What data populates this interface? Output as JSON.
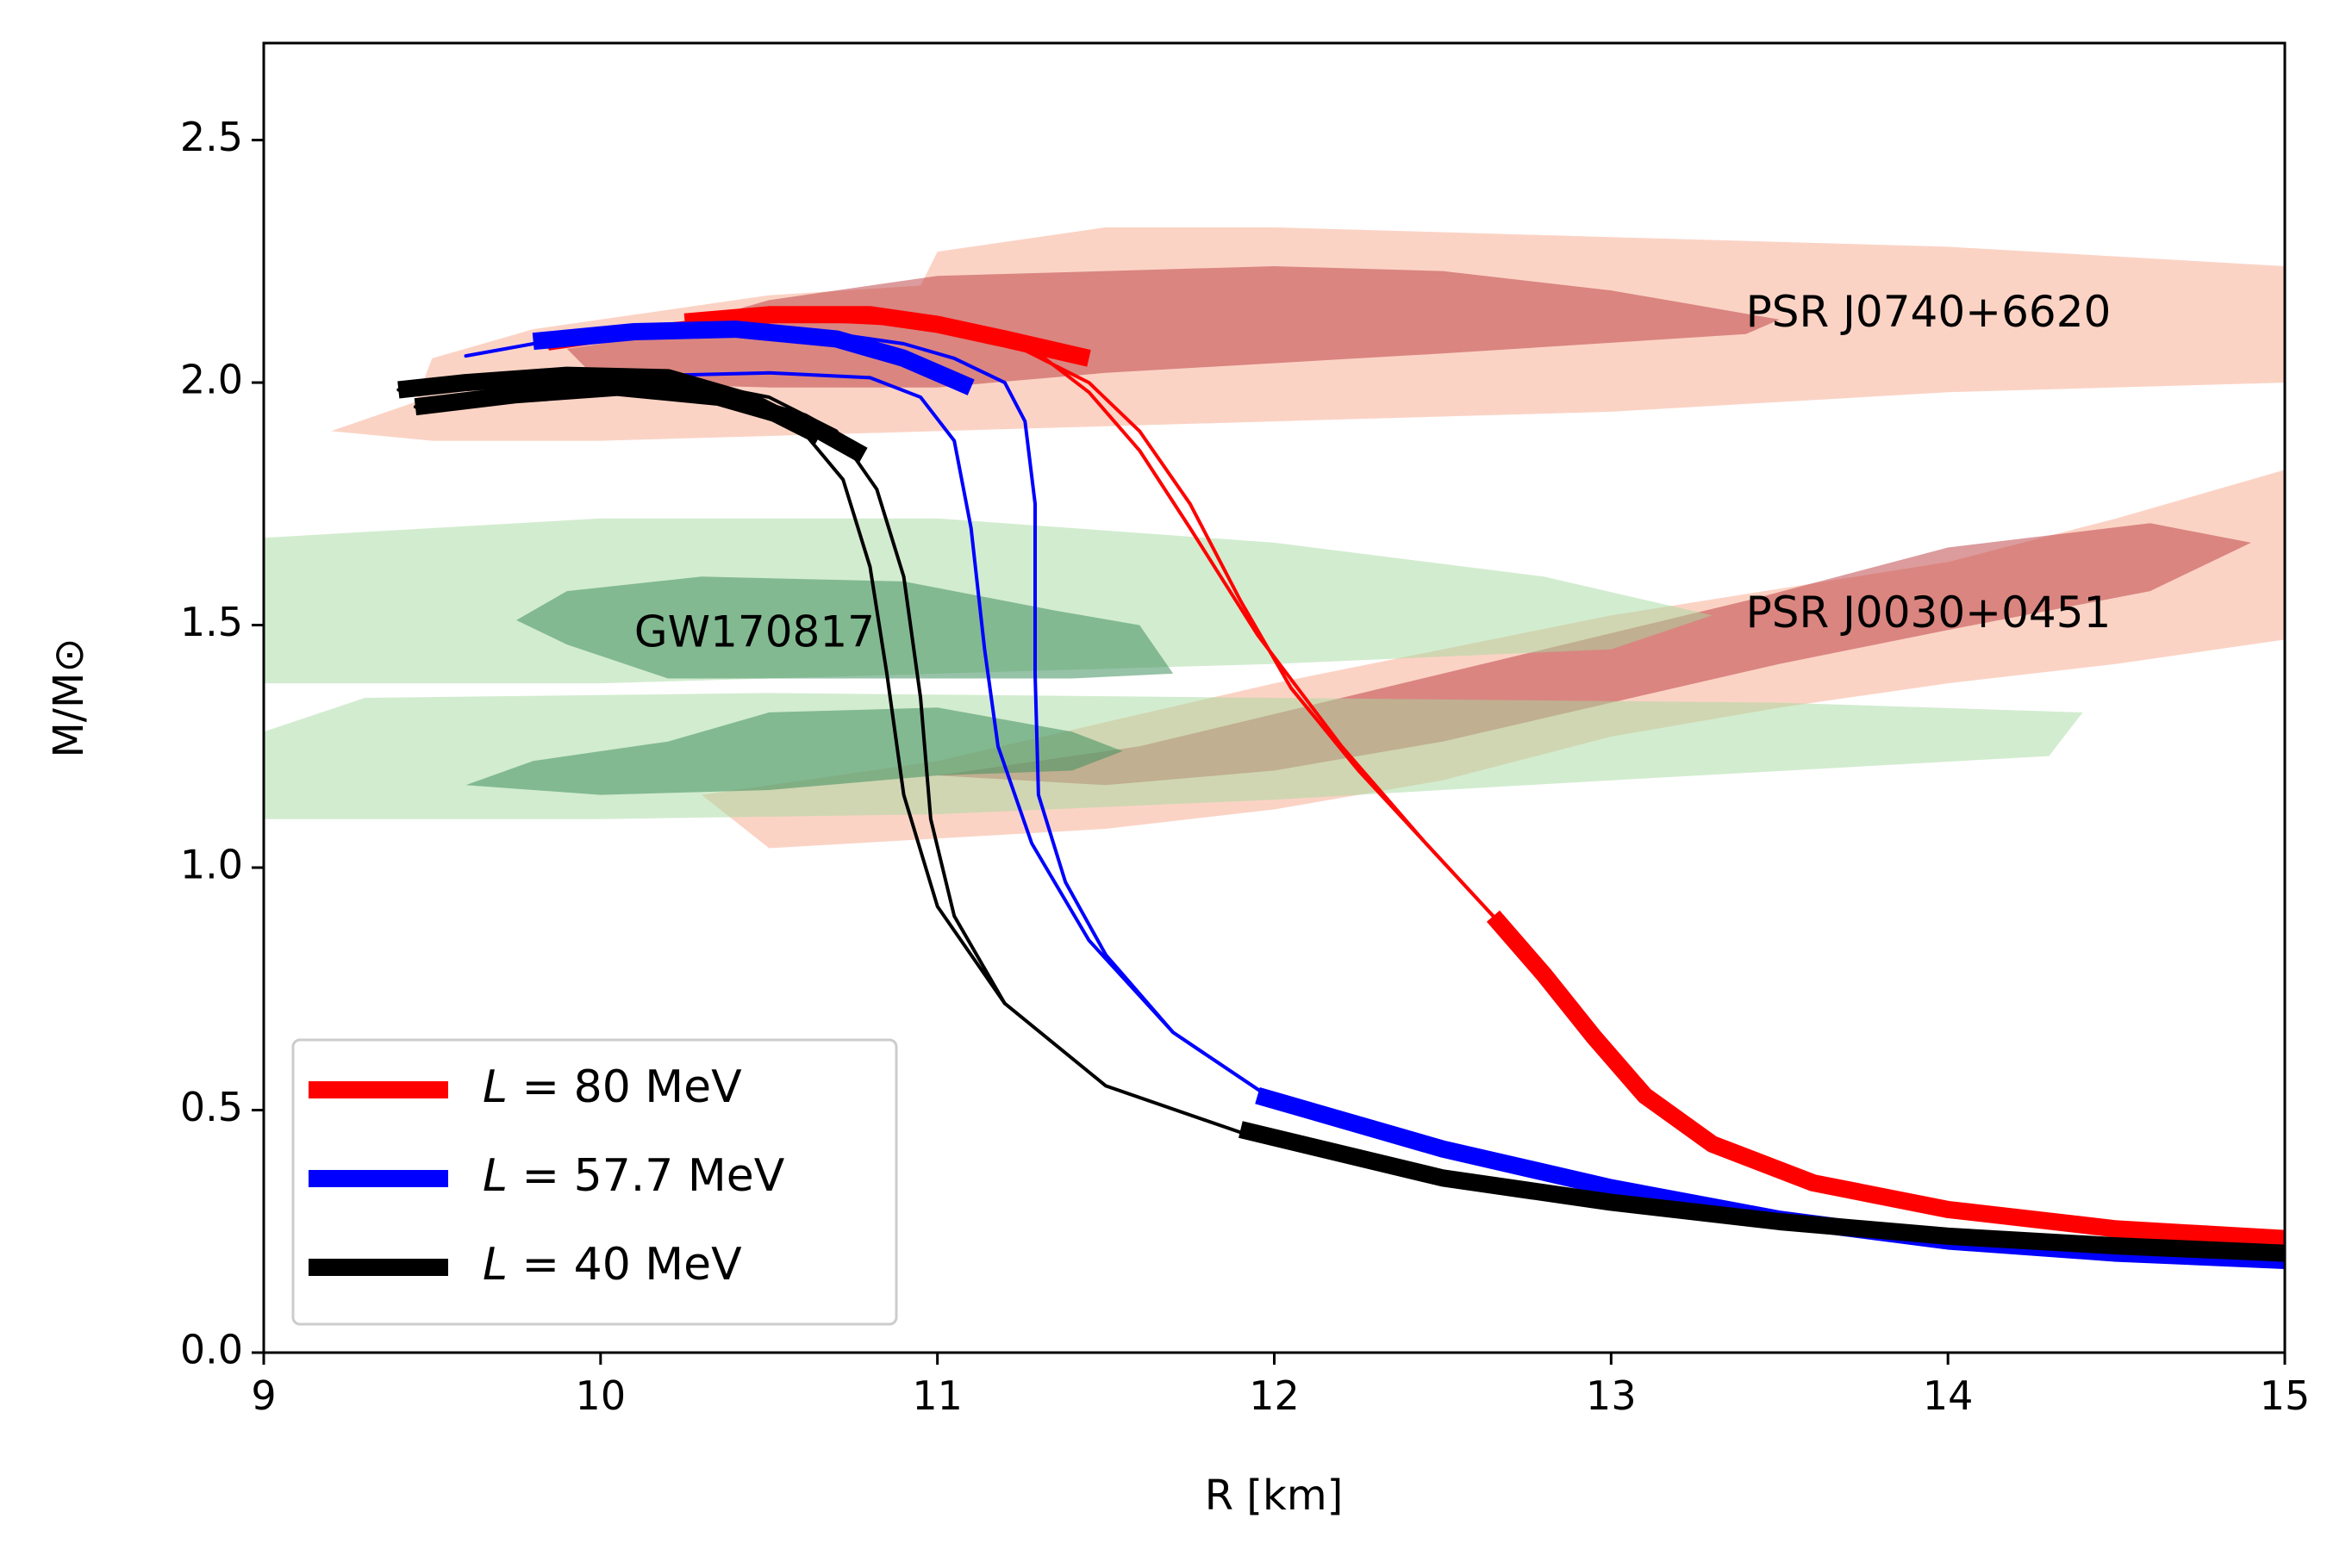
{
  "chart_data": {
    "type": "line",
    "title": "",
    "xlabel": "R [km]",
    "ylabel": "M/M⊙",
    "xlim": [
      9,
      15
    ],
    "ylim": [
      0,
      2.7
    ],
    "xticks": [
      "9",
      "10",
      "11",
      "12",
      "13",
      "14",
      "15"
    ],
    "yticks": [
      "0.0",
      "0.5",
      "1.0",
      "1.5",
      "2.0",
      "2.5"
    ],
    "grid": false,
    "legend_position": "bottom-left",
    "series": [
      {
        "name": "L = 80 MeV",
        "legend_italic": "L",
        "legend_rest": " = 80 MeV",
        "color": "#ff0000",
        "curves": [
          [
            [
              15.0,
              0.235
            ],
            [
              14.5,
              0.255
            ],
            [
              14.0,
              0.295
            ],
            [
              13.6,
              0.35
            ],
            [
              13.3,
              0.43
            ],
            [
              13.1,
              0.53
            ],
            [
              12.95,
              0.65
            ],
            [
              12.8,
              0.78
            ],
            [
              12.65,
              0.9
            ],
            [
              12.45,
              1.05
            ],
            [
              12.25,
              1.2
            ],
            [
              12.05,
              1.37
            ],
            [
              11.9,
              1.55
            ],
            [
              11.75,
              1.75
            ],
            [
              11.6,
              1.9
            ],
            [
              11.45,
              2.0
            ],
            [
              11.25,
              2.07
            ],
            [
              11.05,
              2.11
            ],
            [
              10.8,
              2.135
            ],
            [
              10.5,
              2.14
            ],
            [
              10.2,
              2.12
            ],
            [
              10.0,
              2.095
            ]
          ],
          [
            [
              12.65,
              0.9
            ],
            [
              12.45,
              1.05
            ],
            [
              12.2,
              1.25
            ],
            [
              11.95,
              1.48
            ],
            [
              11.75,
              1.7
            ],
            [
              11.6,
              1.86
            ],
            [
              11.45,
              1.98
            ],
            [
              11.3,
              2.06
            ],
            [
              11.1,
              2.1
            ],
            [
              10.9,
              2.12
            ],
            [
              10.6,
              2.13
            ],
            [
              10.3,
              2.115
            ],
            [
              10.05,
              2.09
            ],
            [
              9.85,
              2.07
            ]
          ]
        ],
        "thick_curves": [
          [
            [
              15.0,
              0.235
            ],
            [
              14.5,
              0.255
            ],
            [
              14.0,
              0.295
            ],
            [
              13.6,
              0.35
            ],
            [
              13.3,
              0.43
            ],
            [
              13.1,
              0.53
            ],
            [
              12.95,
              0.65
            ],
            [
              12.8,
              0.78
            ],
            [
              12.65,
              0.9
            ]
          ],
          [
            [
              11.45,
              2.05
            ],
            [
              11.2,
              2.09
            ],
            [
              11.0,
              2.12
            ],
            [
              10.8,
              2.14
            ],
            [
              10.5,
              2.14
            ],
            [
              10.25,
              2.125
            ]
          ]
        ]
      },
      {
        "name": "L = 57.7 MeV",
        "legend_italic": "L",
        "legend_rest": " = 57.7 MeV",
        "color": "#0000ff",
        "curves": [
          [
            [
              15.0,
              0.19
            ],
            [
              14.5,
              0.205
            ],
            [
              14.0,
              0.23
            ],
            [
              13.5,
              0.275
            ],
            [
              13.0,
              0.34
            ],
            [
              12.5,
              0.42
            ],
            [
              12.0,
              0.52
            ],
            [
              11.7,
              0.66
            ],
            [
              11.5,
              0.82
            ],
            [
              11.38,
              0.97
            ],
            [
              11.3,
              1.15
            ],
            [
              11.29,
              1.4
            ],
            [
              11.29,
              1.75
            ],
            [
              11.26,
              1.92
            ],
            [
              11.2,
              2.0
            ],
            [
              11.05,
              2.05
            ],
            [
              10.9,
              2.08
            ],
            [
              10.6,
              2.11
            ],
            [
              10.3,
              2.115
            ],
            [
              10.0,
              2.1
            ],
            [
              9.8,
              2.08
            ],
            [
              9.6,
              2.055
            ]
          ],
          [
            [
              12.0,
              0.52
            ],
            [
              11.7,
              0.66
            ],
            [
              11.45,
              0.85
            ],
            [
              11.28,
              1.05
            ],
            [
              11.18,
              1.25
            ],
            [
              11.14,
              1.45
            ],
            [
              11.1,
              1.7
            ],
            [
              11.05,
              1.88
            ],
            [
              10.95,
              1.97
            ],
            [
              10.8,
              2.01
            ],
            [
              10.5,
              2.02
            ],
            [
              10.2,
              2.015
            ],
            [
              9.95,
              2.0
            ]
          ]
        ],
        "thick_curves": [
          [
            [
              15.0,
              0.19
            ],
            [
              14.5,
              0.205
            ],
            [
              14.0,
              0.23
            ],
            [
              13.5,
              0.275
            ],
            [
              13.0,
              0.34
            ],
            [
              12.5,
              0.42
            ],
            [
              11.95,
              0.53
            ]
          ],
          [
            [
              11.1,
              1.99
            ],
            [
              10.9,
              2.05
            ],
            [
              10.7,
              2.09
            ],
            [
              10.4,
              2.11
            ],
            [
              10.1,
              2.105
            ],
            [
              9.8,
              2.085
            ]
          ]
        ]
      },
      {
        "name": "L = 40 MeV",
        "legend_italic": "L",
        "legend_rest": " = 40 MeV",
        "color": "#000000",
        "curves": [
          [
            [
              15.0,
              0.205
            ],
            [
              14.5,
              0.22
            ],
            [
              14.0,
              0.24
            ],
            [
              13.5,
              0.27
            ],
            [
              13.0,
              0.31
            ],
            [
              12.5,
              0.36
            ],
            [
              12.0,
              0.43
            ],
            [
              11.5,
              0.55
            ],
            [
              11.2,
              0.72
            ],
            [
              11.0,
              0.92
            ],
            [
              10.9,
              1.15
            ],
            [
              10.85,
              1.4
            ],
            [
              10.8,
              1.62
            ],
            [
              10.72,
              1.8
            ],
            [
              10.6,
              1.9
            ],
            [
              10.4,
              1.96
            ],
            [
              10.1,
              1.985
            ],
            [
              9.8,
              1.975
            ],
            [
              9.6,
              1.96
            ],
            [
              9.45,
              1.95
            ]
          ],
          [
            [
              11.2,
              0.72
            ],
            [
              11.05,
              0.9
            ],
            [
              10.98,
              1.1
            ],
            [
              10.95,
              1.35
            ],
            [
              10.9,
              1.6
            ],
            [
              10.82,
              1.78
            ],
            [
              10.7,
              1.9
            ],
            [
              10.5,
              1.97
            ],
            [
              10.2,
              2.01
            ],
            [
              9.9,
              2.01
            ],
            [
              9.65,
              1.995
            ],
            [
              9.4,
              1.985
            ]
          ]
        ],
        "thick_curves": [
          [
            [
              15.0,
              0.205
            ],
            [
              14.5,
              0.22
            ],
            [
              14.0,
              0.24
            ],
            [
              13.5,
              0.27
            ],
            [
              13.0,
              0.31
            ],
            [
              12.5,
              0.36
            ],
            [
              11.9,
              0.46
            ]
          ],
          [
            [
              10.78,
              1.85
            ],
            [
              10.6,
              1.92
            ],
            [
              10.35,
              1.97
            ],
            [
              10.05,
              1.99
            ],
            [
              9.75,
              1.975
            ],
            [
              9.45,
              1.95
            ]
          ],
          [
            [
              10.65,
              1.89
            ],
            [
              10.45,
              1.96
            ],
            [
              10.2,
              2.01
            ],
            [
              9.9,
              2.015
            ],
            [
              9.6,
              2.0
            ],
            [
              9.4,
              1.985
            ]
          ]
        ]
      }
    ],
    "regions": [
      {
        "name": "PSR J0740+6620 outer",
        "color": "#f7a88c",
        "opacity": 0.5,
        "polygon": [
          [
            9.2,
            1.9
          ],
          [
            9.45,
            1.96
          ],
          [
            9.5,
            2.05
          ],
          [
            9.8,
            2.11
          ],
          [
            10.2,
            2.15
          ],
          [
            10.5,
            2.18
          ],
          [
            10.95,
            2.2
          ],
          [
            11.0,
            2.27
          ],
          [
            11.5,
            2.32
          ],
          [
            12.0,
            2.32
          ],
          [
            13.0,
            2.3
          ],
          [
            14.0,
            2.28
          ],
          [
            15.0,
            2.24
          ],
          [
            15.0,
            2.0
          ],
          [
            14.0,
            1.98
          ],
          [
            13.0,
            1.94
          ],
          [
            12.0,
            1.92
          ],
          [
            11.0,
            1.9
          ],
          [
            10.0,
            1.88
          ],
          [
            9.5,
            1.88
          ]
        ]
      },
      {
        "name": "PSR J0740+6620 inner",
        "color": "#b9373c",
        "opacity": 0.5,
        "polygon": [
          [
            9.9,
            2.07
          ],
          [
            10.1,
            2.09
          ],
          [
            10.5,
            2.17
          ],
          [
            11.0,
            2.22
          ],
          [
            12.0,
            2.24
          ],
          [
            12.5,
            2.23
          ],
          [
            13.0,
            2.19
          ],
          [
            13.5,
            2.13
          ],
          [
            13.4,
            2.1
          ],
          [
            12.5,
            2.06
          ],
          [
            11.5,
            2.02
          ],
          [
            11.0,
            1.99
          ],
          [
            10.5,
            1.99
          ],
          [
            10.0,
            2.0
          ]
        ]
      },
      {
        "name": "PSR J0030+0451 outer",
        "color": "#f7a88c",
        "opacity": 0.5,
        "polygon": [
          [
            10.3,
            1.15
          ],
          [
            11.0,
            1.22
          ],
          [
            12.0,
            1.38
          ],
          [
            13.0,
            1.52
          ],
          [
            14.0,
            1.63
          ],
          [
            14.5,
            1.72
          ],
          [
            15.0,
            1.82
          ],
          [
            15.0,
            1.47
          ],
          [
            14.5,
            1.42
          ],
          [
            14.0,
            1.38
          ],
          [
            13.5,
            1.33
          ],
          [
            13.0,
            1.27
          ],
          [
            12.5,
            1.18
          ],
          [
            12.0,
            1.12
          ],
          [
            11.5,
            1.08
          ],
          [
            10.5,
            1.04
          ]
        ]
      },
      {
        "name": "PSR J0030+0451 inner",
        "color": "#b9373c",
        "opacity": 0.5,
        "polygon": [
          [
            11.0,
            1.19
          ],
          [
            11.6,
            1.25
          ],
          [
            12.2,
            1.35
          ],
          [
            12.8,
            1.45
          ],
          [
            13.4,
            1.55
          ],
          [
            14.0,
            1.66
          ],
          [
            14.6,
            1.71
          ],
          [
            14.9,
            1.67
          ],
          [
            14.6,
            1.57
          ],
          [
            14.0,
            1.49
          ],
          [
            13.5,
            1.42
          ],
          [
            13.0,
            1.34
          ],
          [
            12.5,
            1.26
          ],
          [
            12.0,
            1.2
          ],
          [
            11.5,
            1.17
          ]
        ]
      },
      {
        "name": "GW170817 upper outer",
        "color": "#a6d9a0",
        "opacity": 0.5,
        "polygon": [
          [
            9.0,
            1.68
          ],
          [
            9.5,
            1.7
          ],
          [
            10.0,
            1.72
          ],
          [
            11.0,
            1.72
          ],
          [
            12.0,
            1.67
          ],
          [
            12.8,
            1.6
          ],
          [
            13.3,
            1.52
          ],
          [
            13.0,
            1.45
          ],
          [
            12.0,
            1.42
          ],
          [
            11.0,
            1.4
          ],
          [
            10.0,
            1.38
          ],
          [
            9.0,
            1.38
          ]
        ]
      },
      {
        "name": "GW170817 upper inner",
        "color": "#3f8f5e",
        "opacity": 0.55,
        "polygon": [
          [
            9.75,
            1.51
          ],
          [
            9.9,
            1.57
          ],
          [
            10.3,
            1.6
          ],
          [
            10.9,
            1.59
          ],
          [
            11.35,
            1.53
          ],
          [
            11.6,
            1.5
          ],
          [
            11.7,
            1.4
          ],
          [
            11.4,
            1.39
          ],
          [
            10.2,
            1.39
          ],
          [
            9.9,
            1.46
          ]
        ]
      },
      {
        "name": "GW170817 lower outer",
        "color": "#a6d9a0",
        "opacity": 0.5,
        "polygon": [
          [
            9.0,
            1.28
          ],
          [
            9.3,
            1.35
          ],
          [
            10.5,
            1.36
          ],
          [
            12.0,
            1.35
          ],
          [
            13.5,
            1.34
          ],
          [
            14.4,
            1.32
          ],
          [
            14.3,
            1.23
          ],
          [
            13.0,
            1.18
          ],
          [
            12.0,
            1.14
          ],
          [
            11.0,
            1.11
          ],
          [
            10.0,
            1.1
          ],
          [
            9.0,
            1.1
          ]
        ]
      },
      {
        "name": "GW170817 lower inner",
        "color": "#3f8f5e",
        "opacity": 0.55,
        "polygon": [
          [
            9.6,
            1.17
          ],
          [
            9.8,
            1.22
          ],
          [
            10.2,
            1.26
          ],
          [
            10.5,
            1.32
          ],
          [
            11.0,
            1.33
          ],
          [
            11.4,
            1.28
          ],
          [
            11.55,
            1.24
          ],
          [
            11.4,
            1.2
          ],
          [
            11.0,
            1.19
          ],
          [
            10.5,
            1.16
          ],
          [
            10.0,
            1.15
          ],
          [
            9.6,
            1.17
          ]
        ]
      }
    ],
    "annotations": [
      {
        "text": "PSR J0740+6620",
        "x": 13.4,
        "y": 2.14
      },
      {
        "text": "PSR J0030+0451",
        "x": 13.4,
        "y": 1.52
      },
      {
        "text": "GW170817",
        "x": 10.1,
        "y": 1.48
      }
    ]
  }
}
